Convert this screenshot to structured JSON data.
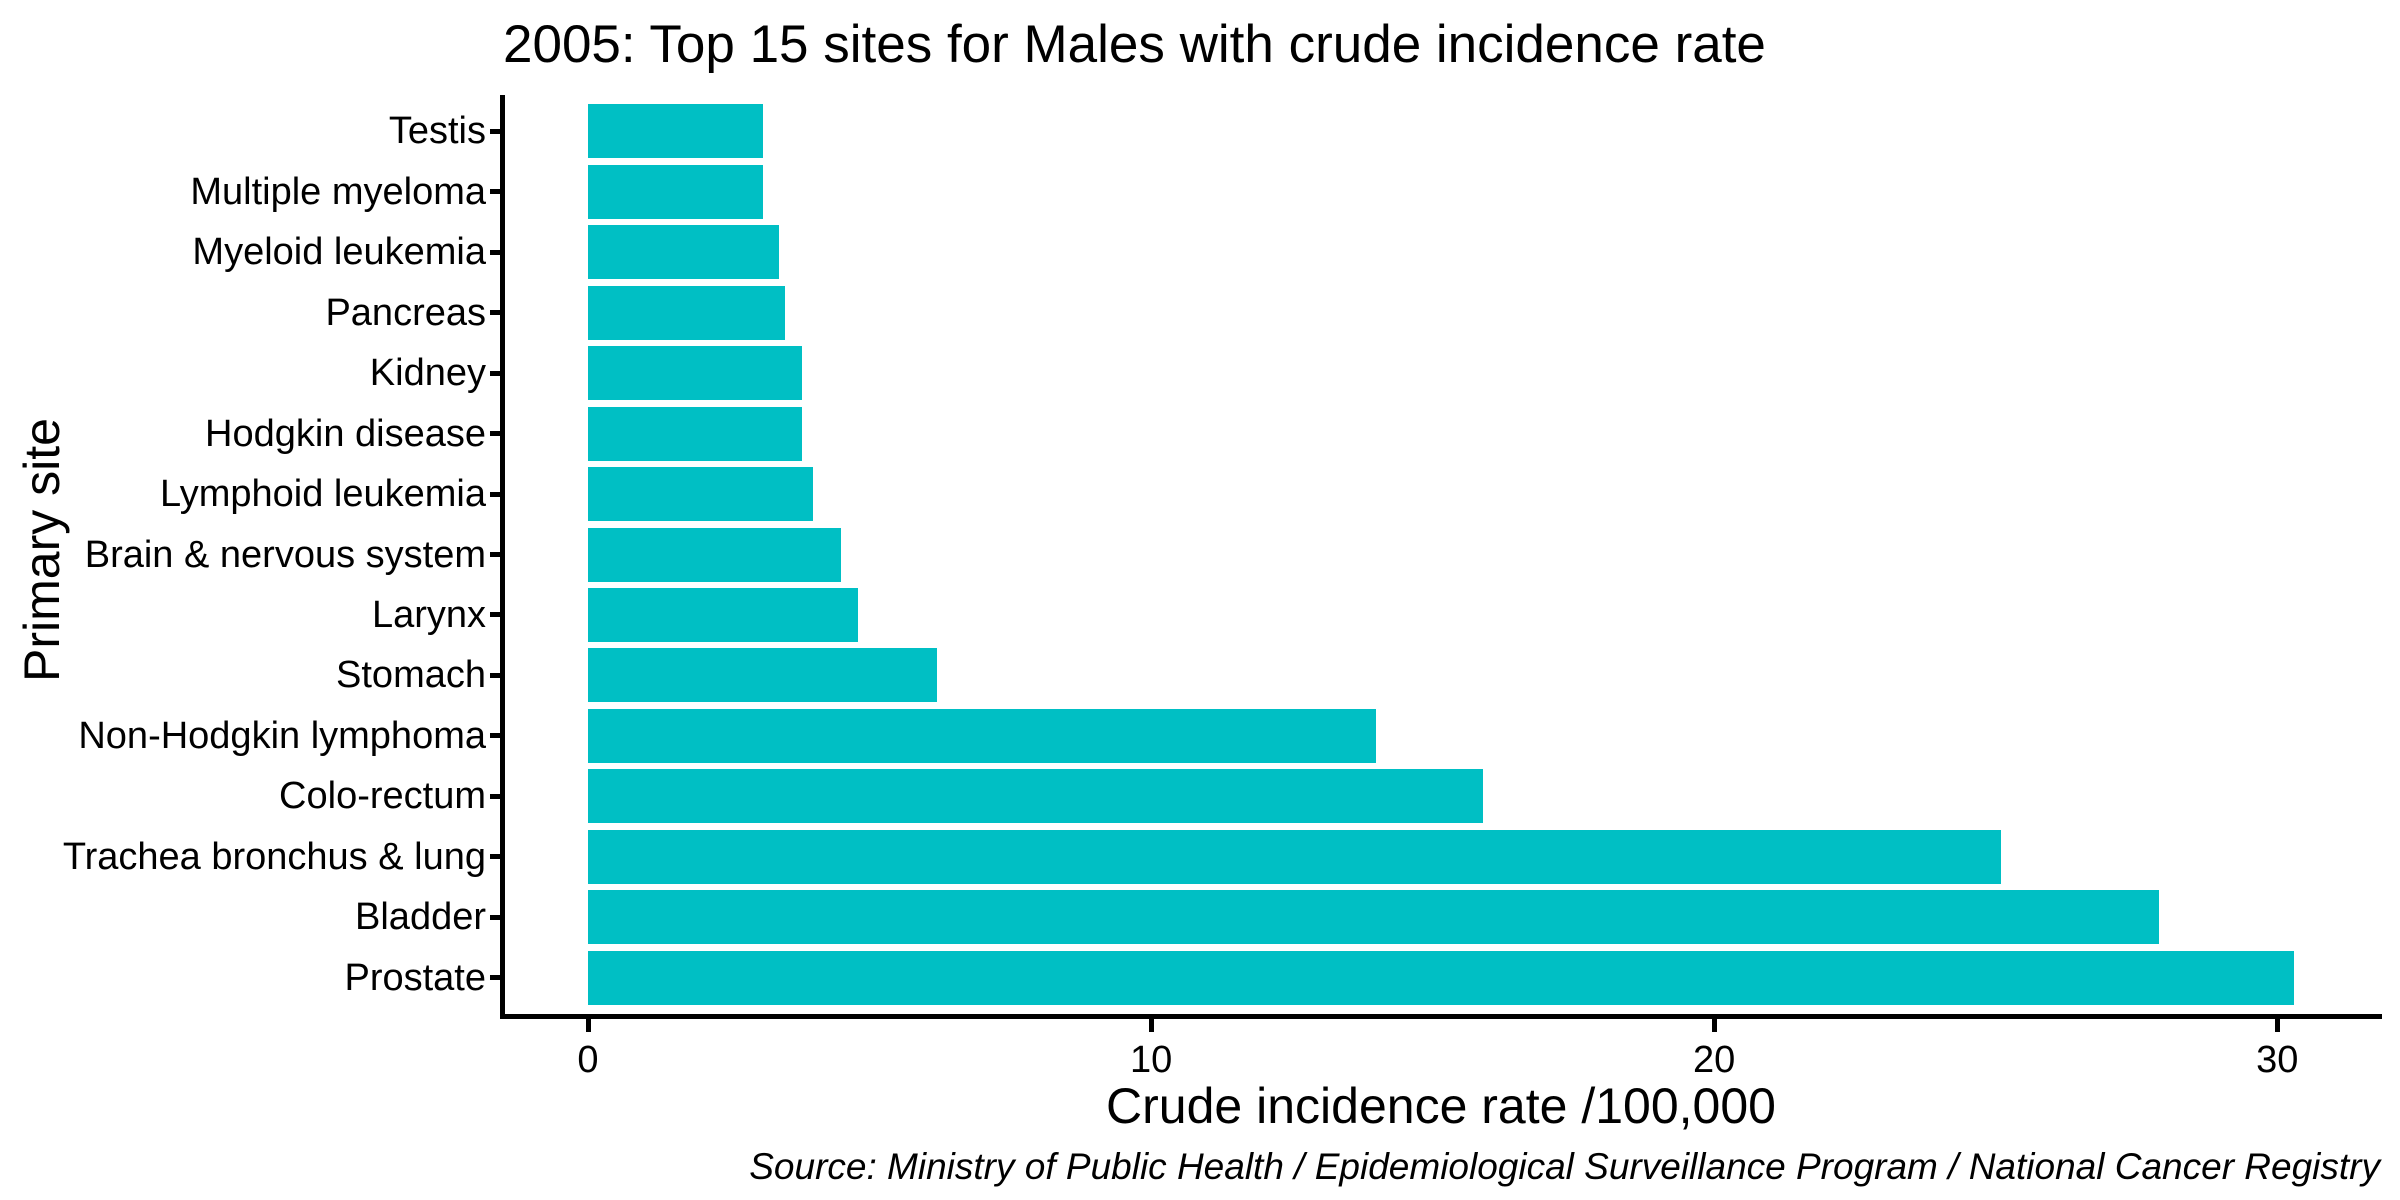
{
  "chart_data": {
    "type": "bar",
    "orientation": "horizontal",
    "title": "2005: Top 15 sites for Males with crude incidence rate",
    "xlabel": "Crude incidence rate /100,000",
    "ylabel": "Primary site",
    "source_note": "Source: Ministry of Public Health / Epidemiological Surveillance Program / National Cancer Registry",
    "categories": [
      "Testis",
      "Multiple myeloma",
      "Myeloid leukemia",
      "Pancreas",
      "Kidney",
      "Hodgkin disease",
      "Lymphoid leukemia",
      "Brain & nervous system",
      "Larynx",
      "Stomach",
      "Non-Hodgkin lymphoma",
      "Colo-rectum",
      "Trachea bronchus & lung",
      "Bladder",
      "Prostate"
    ],
    "values": [
      3.1,
      3.1,
      3.4,
      3.5,
      3.8,
      3.8,
      4.0,
      4.5,
      4.8,
      6.2,
      14.0,
      15.9,
      25.1,
      27.9,
      30.3
    ],
    "xticks": [
      0,
      10,
      20,
      30
    ],
    "xlim": [
      0,
      31.9
    ],
    "grid": false,
    "legend": "none",
    "bar_color": "#00BFC4",
    "axis_color": "#000000",
    "text_color": "#000000",
    "background_color": "#FFFFFF"
  }
}
